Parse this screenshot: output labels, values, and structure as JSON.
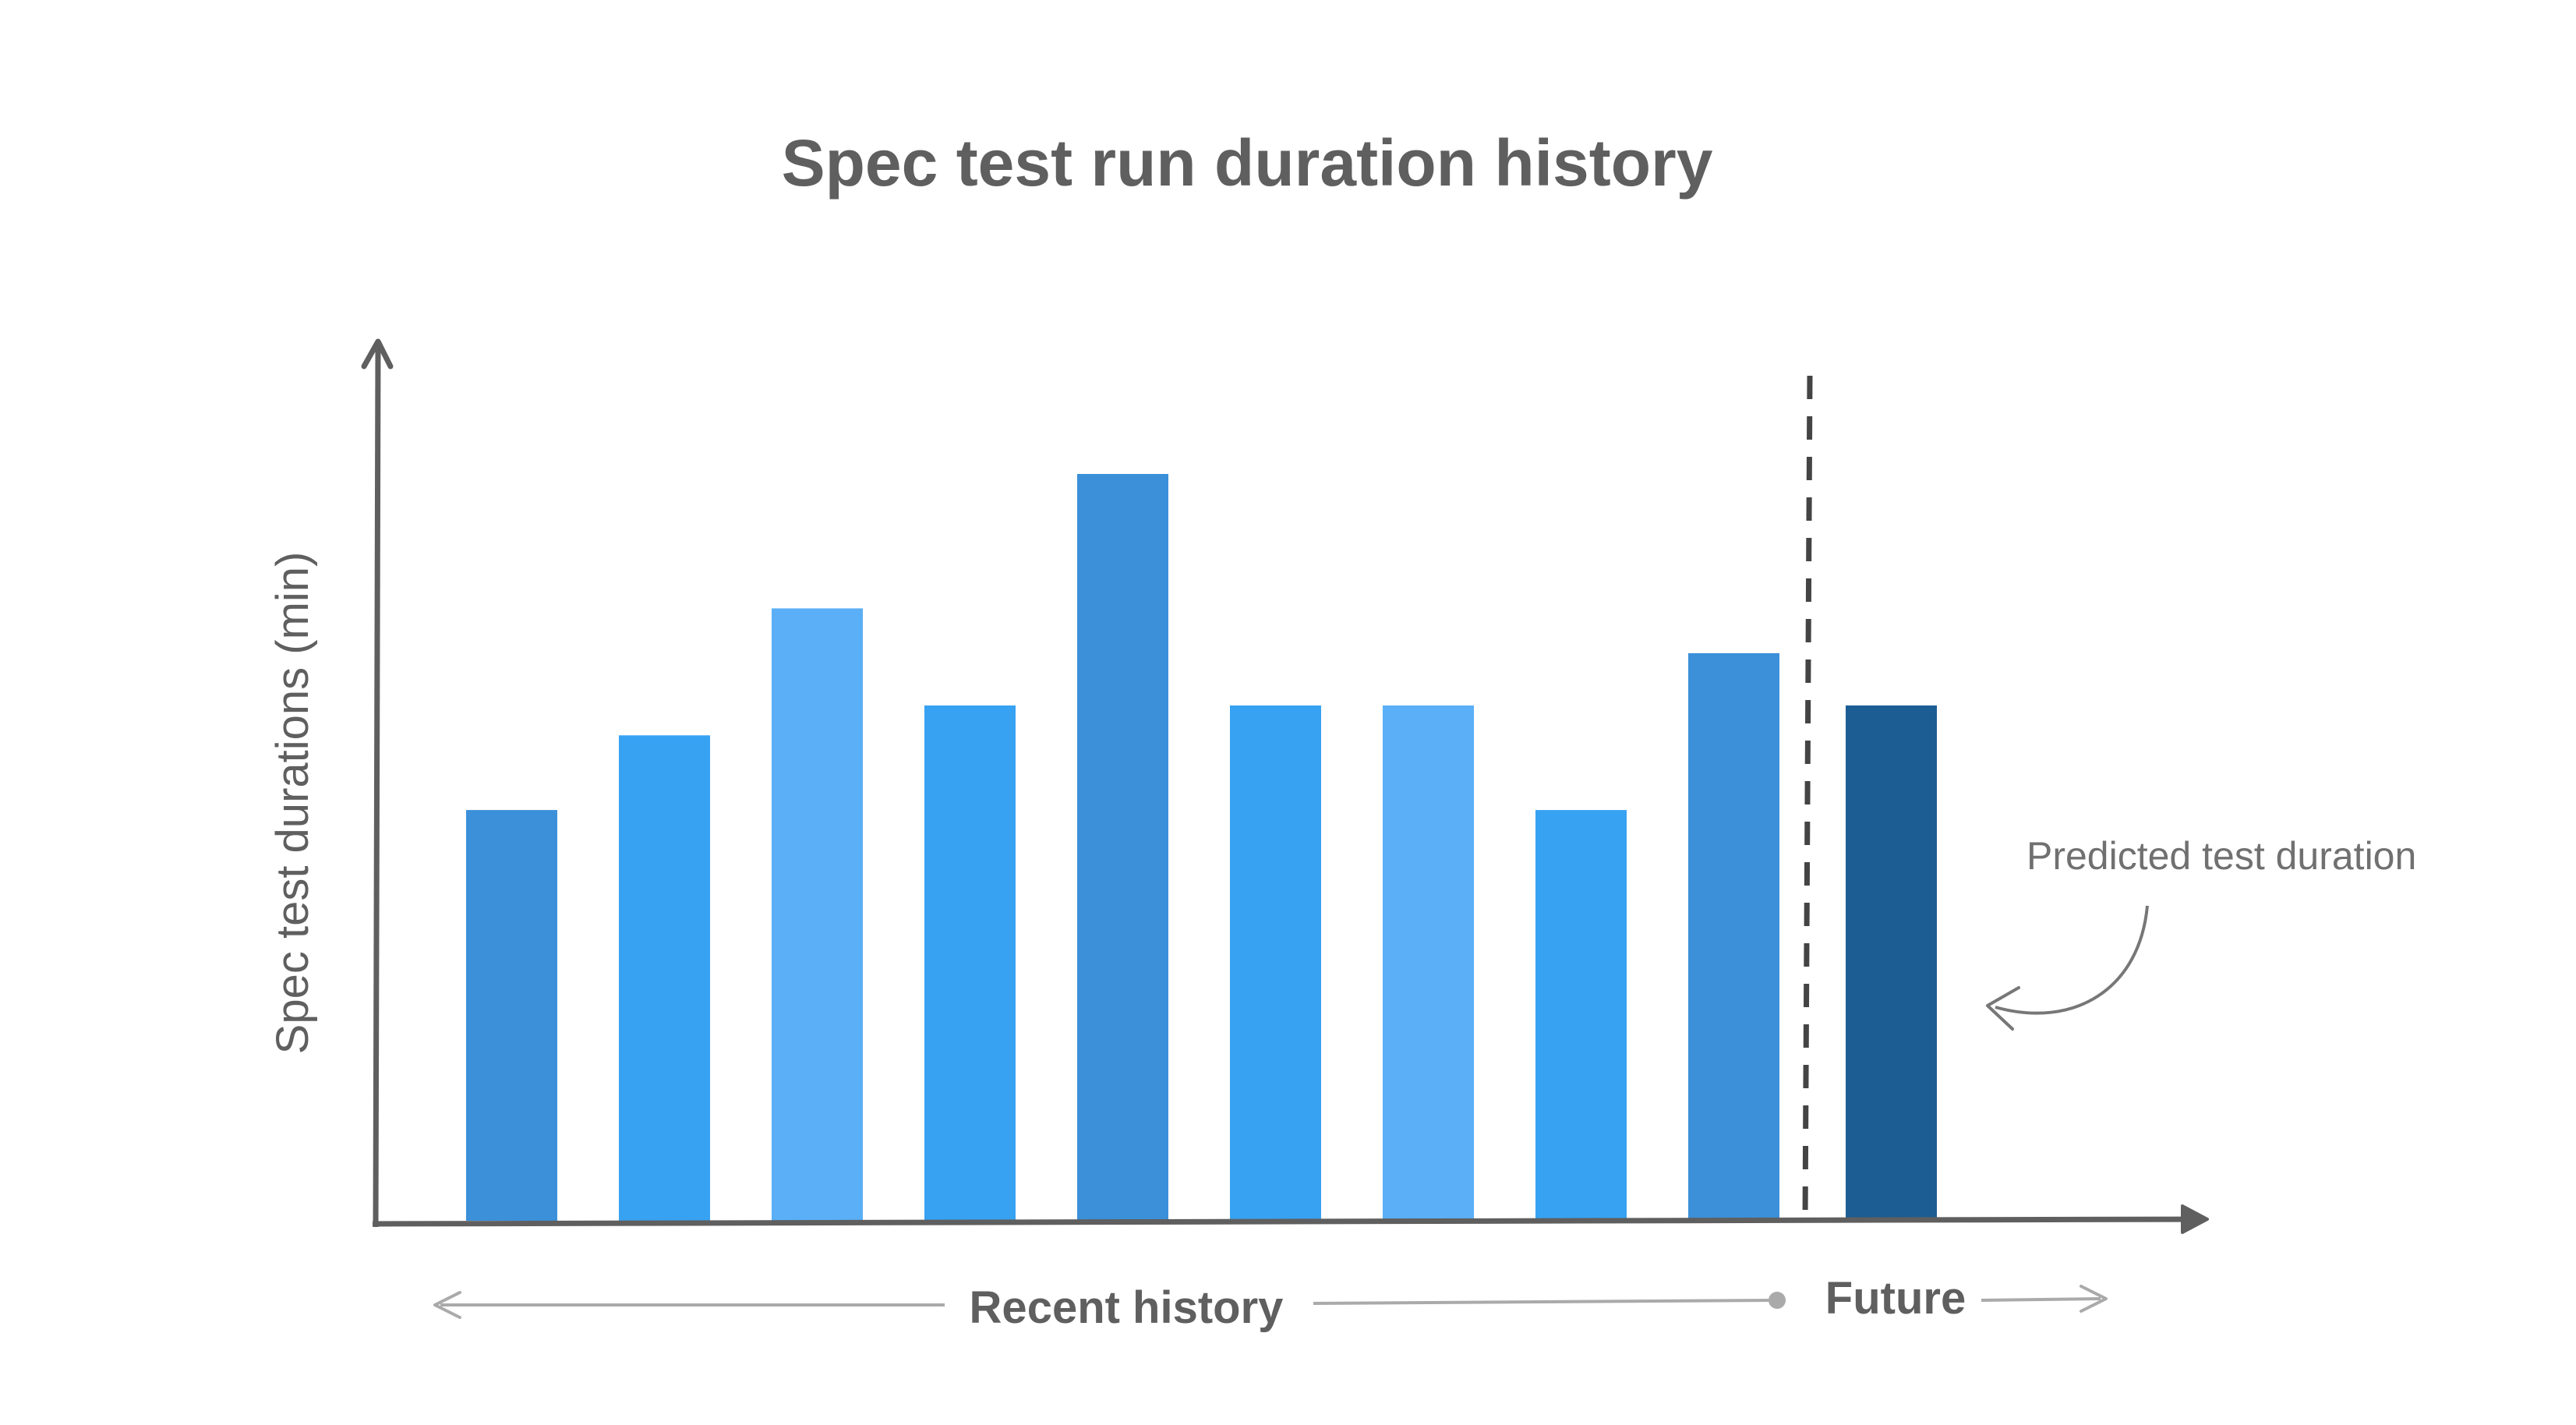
{
  "chart_data": {
    "type": "bar",
    "title": "Spec test run duration history",
    "ylabel": "Spec test durations (min)",
    "xlabel": "",
    "ylim": [
      0,
      100
    ],
    "grid": false,
    "values": [
      55,
      65,
      82,
      69,
      100,
      69,
      69,
      55,
      76,
      69
    ],
    "bar_colors": [
      "#3b90d9",
      "#38a2f2",
      "#5aaff6",
      "#38a2f2",
      "#3b90d9",
      "#38a2f2",
      "#5aaff6",
      "#38a2f2",
      "#3b90d9",
      "#1c5d93"
    ],
    "predicted_index": 9,
    "annotation": "Predicted test duration",
    "periods": {
      "history_label": "Recent history",
      "future_label": "Future"
    }
  },
  "colors": {
    "axis": "#5f5f5f",
    "divider": "#444444",
    "guide": "#aaaaaa",
    "annotation_arrow": "#777777"
  }
}
